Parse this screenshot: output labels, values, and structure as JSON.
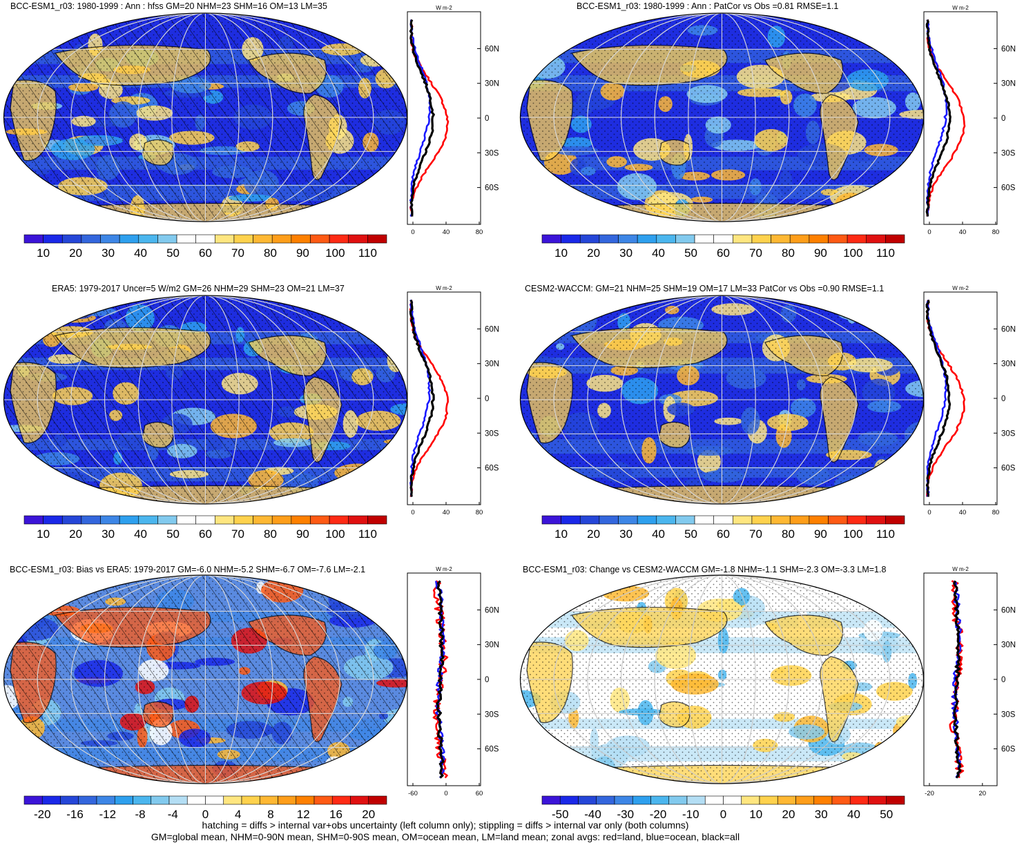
{
  "panels": [
    {
      "title": "BCC-ESM1_r03: 1980-1999 : Ann : hfss GM=20 NHM=23 SHM=16 OM=13 LM=35",
      "overlay": "hatch",
      "palette": "abs",
      "cbar_ticks": [
        "10",
        "20",
        "30",
        "40",
        "50",
        "60",
        "70",
        "80",
        "90",
        "100",
        "110"
      ],
      "zonal_ticks": [
        "0",
        "40",
        "80"
      ],
      "zonal_unit": "W m-2"
    },
    {
      "title": "BCC-ESM1_r03: 1980-1999 : Ann : PatCor vs Obs =0.81 RMSE=1.1",
      "overlay": "stipple",
      "palette": "abs",
      "cbar_ticks": [
        "10",
        "20",
        "30",
        "40",
        "50",
        "60",
        "70",
        "80",
        "90",
        "100",
        "110"
      ],
      "zonal_ticks": [
        "0",
        "40",
        "80"
      ],
      "zonal_unit": "W m-2"
    },
    {
      "title": "ERA5: 1979-2017 Uncer=5 W/m2 GM=26 NHM=29 SHM=23 OM=21 LM=37",
      "overlay": "hatch",
      "palette": "abs",
      "cbar_ticks": [
        "10",
        "20",
        "30",
        "40",
        "50",
        "60",
        "70",
        "80",
        "90",
        "100",
        "110"
      ],
      "zonal_ticks": [
        "0",
        "40",
        "80"
      ],
      "zonal_unit": "W m-2"
    },
    {
      "title": "CESM2-WACCM: GM=21 NHM=25 SHM=19 OM=17 LM=33 PatCor vs Obs =0.90 RMSE=1.1",
      "overlay": "stipple",
      "palette": "abs",
      "cbar_ticks": [
        "10",
        "20",
        "30",
        "40",
        "50",
        "60",
        "70",
        "80",
        "90",
        "100",
        "110"
      ],
      "zonal_ticks": [
        "0",
        "40",
        "80"
      ],
      "zonal_unit": "W m-2"
    },
    {
      "title": "BCC-ESM1_r03: Bias vs ERA5: 1979-2017 GM=-6.0 NHM=-5.2 SHM=-6.7 OM=-7.6 LM=-2.1",
      "overlay": "hatch",
      "palette": "bias",
      "cbar_ticks": [
        "-20",
        "-16",
        "-12",
        "-8",
        "-4",
        "0",
        "4",
        "8",
        "12",
        "16",
        "20"
      ],
      "zonal_ticks": [
        "-60",
        "0",
        "60"
      ],
      "zonal_unit": "W m-2"
    },
    {
      "title": "BCC-ESM1_r03: Change vs CESM2-WACCM GM=-1.8 NHM=-1.1 SHM=-2.3 OM=-3.3 LM=1.8",
      "overlay": "stipple",
      "palette": "change",
      "cbar_ticks": [
        "-50",
        "-40",
        "-30",
        "-20",
        "-10",
        "0",
        "10",
        "20",
        "30",
        "40",
        "50"
      ],
      "zonal_ticks": [
        "-20",
        "20"
      ],
      "zonal_unit": "W m-2"
    }
  ],
  "lat_labels": [
    "60N",
    "30N",
    "0",
    "30S",
    "60S"
  ],
  "legend": {
    "land": "red",
    "ocean": "blue",
    "all": "black"
  },
  "colors": {
    "land": "#ff0000",
    "ocean": "#1a1aff",
    "all": "#000000"
  },
  "footer": {
    "line1": "hatching = diffs > internal var+obs uncertainty (left column only); stippling = diffs > internal var only (both columns)",
    "line2": "GM=global mean, NHM=0-90N mean, SHM=0-90S mean, OM=ocean mean, LM=land mean; zonal avgs: red=land, blue=ocean, black=all"
  }
}
